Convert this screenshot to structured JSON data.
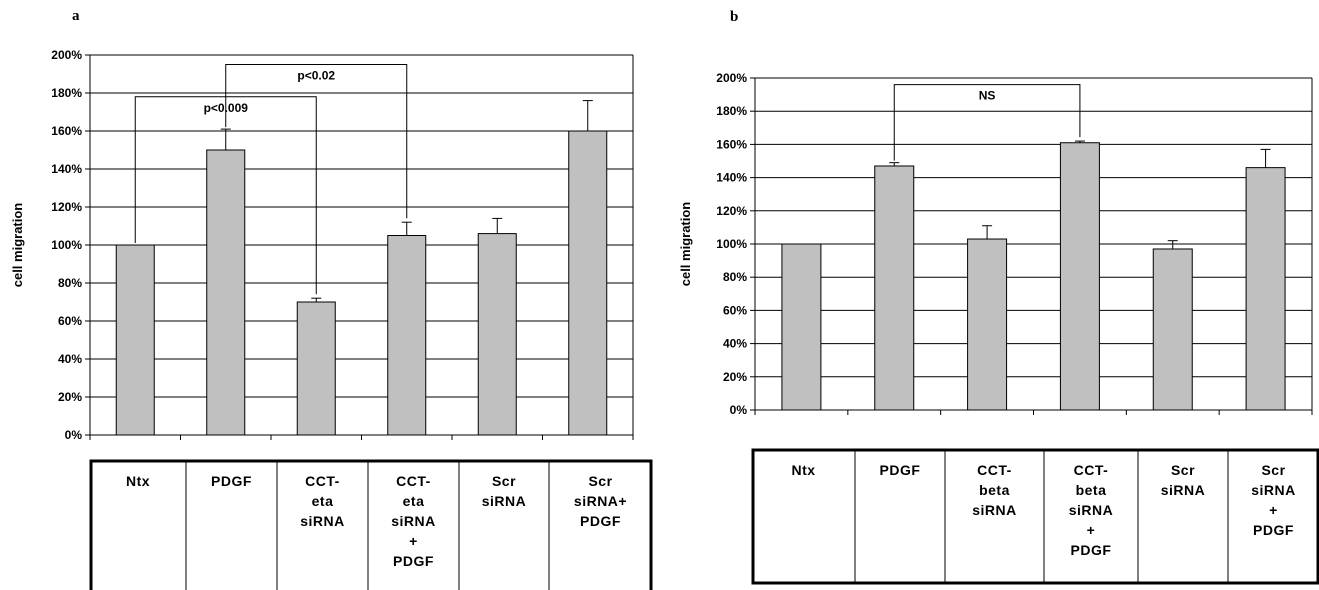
{
  "chart_data": [
    {
      "type": "bar",
      "panel_label": "a",
      "ylabel": "cell migration",
      "ylim": [
        0,
        200
      ],
      "y_ticks": [
        "0%",
        "20%",
        "40%",
        "60%",
        "80%",
        "100%",
        "120%",
        "140%",
        "160%",
        "180%",
        "200%"
      ],
      "categories": [
        [
          "Ntx"
        ],
        [
          "PDGF"
        ],
        [
          "CCT-",
          "eta",
          "siRNA"
        ],
        [
          "CCT-",
          "eta",
          "siRNA",
          "+",
          "PDGF"
        ],
        [
          "Scr",
          "siRNA"
        ],
        [
          "Scr",
          "siRNA+",
          "PDGF"
        ]
      ],
      "values": [
        100,
        150,
        70,
        105,
        106,
        160
      ],
      "errors": [
        0,
        11,
        2,
        7,
        8,
        16
      ],
      "bar_color": "#c0c0c0",
      "grid": true,
      "annotations": [
        {
          "text": "p<0.009",
          "from": 0,
          "to": 2,
          "level": 178
        },
        {
          "text": "p<0.02",
          "from": 1,
          "to": 3,
          "level": 195
        }
      ]
    },
    {
      "type": "bar",
      "panel_label": "b",
      "ylabel": "cell migration",
      "ylim": [
        0,
        200
      ],
      "y_ticks": [
        "0%",
        "20%",
        "40%",
        "60%",
        "80%",
        "100%",
        "120%",
        "140%",
        "160%",
        "180%",
        "200%"
      ],
      "categories": [
        [
          "Ntx"
        ],
        [
          "PDGF"
        ],
        [
          "CCT-",
          "beta",
          "siRNA"
        ],
        [
          "CCT-",
          "beta",
          "siRNA",
          "+",
          "PDGF"
        ],
        [
          "Scr",
          "siRNA"
        ],
        [
          "Scr",
          "siRNA",
          "+",
          "PDGF"
        ]
      ],
      "values": [
        100,
        147,
        103,
        161,
        97,
        146
      ],
      "errors": [
        0,
        2,
        8,
        1,
        5,
        11
      ],
      "bar_color": "#c0c0c0",
      "grid": true,
      "annotations": [
        {
          "text": "NS",
          "from": 1,
          "to": 3,
          "level": 196
        }
      ]
    }
  ]
}
